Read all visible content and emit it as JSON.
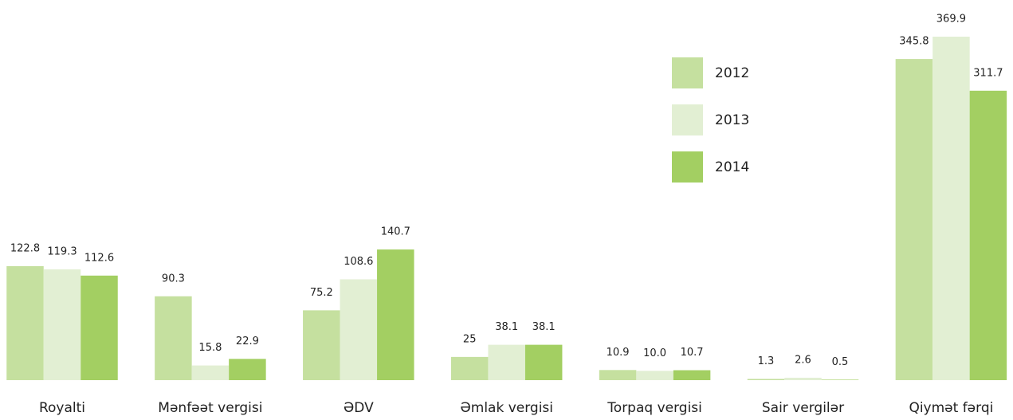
{
  "chart_data": {
    "type": "bar",
    "categories": [
      "Royalti",
      "Mənfəət vergisi",
      "ƏDV",
      "Əmlak vergisi",
      "Torpaq vergisi",
      "Sair vergilər",
      "Qiymət fərqi"
    ],
    "series": [
      {
        "name": "2012",
        "color": "#c5e09f",
        "values": [
          122.8,
          90.3,
          75.2,
          25,
          10.9,
          1.3,
          345.8
        ],
        "value_labels": [
          "122.8",
          "90.3",
          "75.2",
          "25",
          "10.9",
          "1.3",
          "345.8"
        ]
      },
      {
        "name": "2013",
        "color": "#e2efd3",
        "values": [
          119.3,
          15.8,
          108.6,
          38.1,
          10.0,
          2.6,
          369.9
        ],
        "value_labels": [
          "119.3",
          "15.8",
          "108.6",
          "38.1",
          "10.0",
          "2.6",
          "369.9"
        ]
      },
      {
        "name": "2014",
        "color": "#a3cf62",
        "values": [
          112.6,
          22.9,
          140.7,
          38.1,
          10.7,
          0.5,
          311.7
        ],
        "value_labels": [
          "112.6",
          "22.9",
          "140.7",
          "38.1",
          "10.7",
          "0.5",
          "311.7"
        ]
      }
    ]
  }
}
